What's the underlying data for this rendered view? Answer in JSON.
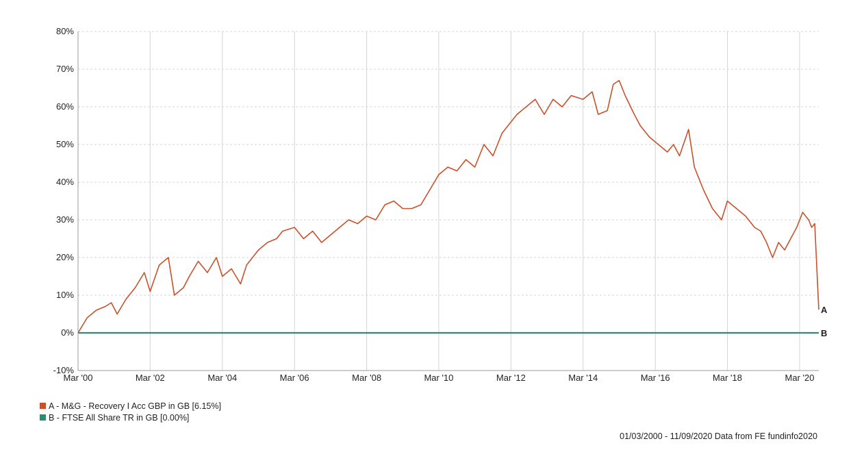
{
  "chart_data": {
    "type": "line",
    "x_ticks": [
      "Mar '00",
      "Mar '02",
      "Mar '04",
      "Mar '06",
      "Mar '08",
      "Mar '10",
      "Mar '12",
      "Mar '14",
      "Mar '16",
      "Mar '18",
      "Mar '20"
    ],
    "y_ticks": [
      "80%",
      "70%",
      "60%",
      "50%",
      "40%",
      "30%",
      "20%",
      "10%",
      "0%",
      "-10%"
    ],
    "ylim": [
      -10,
      80
    ],
    "xlim": [
      "2000-03-01",
      "2020-09-11"
    ],
    "grid": true,
    "series": [
      {
        "name": "A - M&G - Recovery I Acc GBP in GB [6.15%]",
        "end_label": "A",
        "color": "#c8502a",
        "points": [
          [
            "2000-03-01",
            0
          ],
          [
            "2000-06-01",
            4
          ],
          [
            "2000-09-01",
            6
          ],
          [
            "2000-12-01",
            7
          ],
          [
            "2001-02-01",
            8
          ],
          [
            "2001-04-01",
            5
          ],
          [
            "2001-07-01",
            9
          ],
          [
            "2001-10-01",
            12
          ],
          [
            "2002-01-01",
            16
          ],
          [
            "2002-03-01",
            11
          ],
          [
            "2002-06-01",
            18
          ],
          [
            "2002-09-01",
            20
          ],
          [
            "2002-11-01",
            10
          ],
          [
            "2003-02-01",
            12
          ],
          [
            "2003-04-01",
            15
          ],
          [
            "2003-07-01",
            19
          ],
          [
            "2003-10-01",
            16
          ],
          [
            "2004-01-01",
            20
          ],
          [
            "2004-03-01",
            15
          ],
          [
            "2004-06-01",
            17
          ],
          [
            "2004-09-01",
            13
          ],
          [
            "2004-11-01",
            18
          ],
          [
            "2005-03-01",
            22
          ],
          [
            "2005-06-01",
            24
          ],
          [
            "2005-09-01",
            25
          ],
          [
            "2005-11-01",
            27
          ],
          [
            "2006-03-01",
            28
          ],
          [
            "2006-06-01",
            25
          ],
          [
            "2006-09-01",
            27
          ],
          [
            "2006-12-01",
            24
          ],
          [
            "2007-03-01",
            26
          ],
          [
            "2007-06-01",
            28
          ],
          [
            "2007-09-01",
            30
          ],
          [
            "2007-12-01",
            29
          ],
          [
            "2008-03-01",
            31
          ],
          [
            "2008-06-01",
            30
          ],
          [
            "2008-09-01",
            34
          ],
          [
            "2008-12-01",
            35
          ],
          [
            "2009-03-01",
            33
          ],
          [
            "2009-06-01",
            33
          ],
          [
            "2009-09-01",
            34
          ],
          [
            "2009-12-01",
            38
          ],
          [
            "2010-03-01",
            42
          ],
          [
            "2010-06-01",
            44
          ],
          [
            "2010-09-01",
            43
          ],
          [
            "2010-12-01",
            46
          ],
          [
            "2011-03-01",
            44
          ],
          [
            "2011-06-01",
            50
          ],
          [
            "2011-09-01",
            47
          ],
          [
            "2011-12-01",
            53
          ],
          [
            "2012-03-01",
            56
          ],
          [
            "2012-05-01",
            58
          ],
          [
            "2012-08-01",
            60
          ],
          [
            "2012-11-01",
            62
          ],
          [
            "2013-02-01",
            58
          ],
          [
            "2013-05-01",
            62
          ],
          [
            "2013-08-01",
            60
          ],
          [
            "2013-11-01",
            63
          ],
          [
            "2014-03-01",
            62
          ],
          [
            "2014-06-01",
            64
          ],
          [
            "2014-08-01",
            58
          ],
          [
            "2014-11-01",
            59
          ],
          [
            "2015-01-01",
            66
          ],
          [
            "2015-03-01",
            67
          ],
          [
            "2015-05-01",
            63
          ],
          [
            "2015-08-01",
            58
          ],
          [
            "2015-10-01",
            55
          ],
          [
            "2016-01-01",
            52
          ],
          [
            "2016-04-01",
            50
          ],
          [
            "2016-07-01",
            48
          ],
          [
            "2016-09-01",
            50
          ],
          [
            "2016-11-01",
            47
          ],
          [
            "2017-02-01",
            54
          ],
          [
            "2017-04-01",
            44
          ],
          [
            "2017-07-01",
            38
          ],
          [
            "2017-10-01",
            33
          ],
          [
            "2018-01-01",
            30
          ],
          [
            "2018-03-01",
            35
          ],
          [
            "2018-06-01",
            33
          ],
          [
            "2018-09-01",
            31
          ],
          [
            "2018-12-01",
            28
          ],
          [
            "2019-02-01",
            27
          ],
          [
            "2019-04-01",
            24
          ],
          [
            "2019-06-01",
            20
          ],
          [
            "2019-08-01",
            24
          ],
          [
            "2019-10-01",
            22
          ],
          [
            "2019-12-01",
            25
          ],
          [
            "2020-02-01",
            28
          ],
          [
            "2020-04-01",
            32
          ],
          [
            "2020-05-01",
            31
          ],
          [
            "2020-06-01",
            30
          ],
          [
            "2020-07-01",
            28
          ],
          [
            "2020-08-01",
            29
          ],
          [
            "2020-09-11",
            6.15
          ]
        ]
      },
      {
        "name": "B - FTSE All Share TR in GB [0.00%]",
        "end_label": "B",
        "color": "#2e8b6e",
        "points": [
          [
            "2000-03-01",
            0
          ],
          [
            "2020-09-11",
            0
          ]
        ]
      }
    ]
  },
  "footer": "01/03/2000 - 11/09/2020 Data from FE fundinfo2020"
}
